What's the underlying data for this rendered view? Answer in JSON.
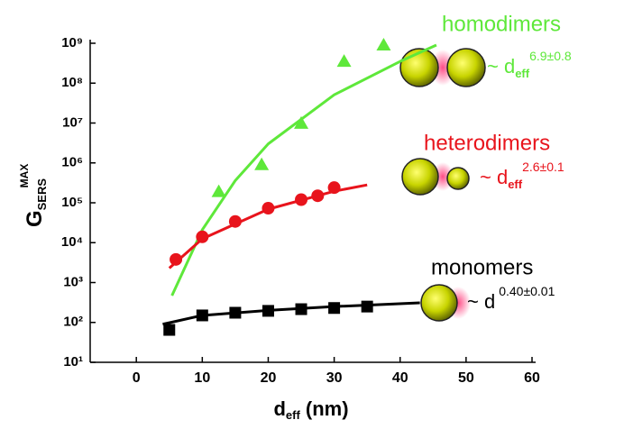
{
  "chart_data": {
    "type": "scatter",
    "x_label": {
      "main": "d",
      "sub": "eff",
      "rest": " (nm)"
    },
    "y_label": {
      "main": "G",
      "sub": "SERS",
      "sup": "MAX"
    },
    "xlim": [
      -7,
      60
    ],
    "xticks": [
      0,
      10,
      20,
      30,
      40,
      50,
      60
    ],
    "ylim": [
      10,
      1000000000
    ],
    "log_y": true,
    "yticks": [
      {
        "value": 10,
        "label": "10¹"
      },
      {
        "value": 100,
        "label": "10²"
      },
      {
        "value": 1000,
        "label": "10³"
      },
      {
        "value": 10000,
        "label": "10⁴"
      },
      {
        "value": 100000,
        "label": "10⁵"
      },
      {
        "value": 1000000,
        "label": "10⁶"
      },
      {
        "value": 10000000,
        "label": "10⁷"
      },
      {
        "value": 100000000,
        "label": "10⁸"
      },
      {
        "value": 1000000000,
        "label": "10⁹"
      }
    ],
    "series": [
      {
        "name": "homodimers",
        "color": "#5ee83a",
        "marker": "triangle",
        "formula": {
          "prefix": "~ d",
          "sub": "eff",
          "sup": "6.9±0.8"
        },
        "x": [
          12.5,
          19,
          25,
          31.5,
          37.5
        ],
        "values": [
          190000,
          900000,
          9800000,
          350000000,
          900000000
        ],
        "fit": {
          "x": [
            5.4,
            10,
            15,
            20,
            30,
            40,
            45.5
          ],
          "values": [
            470,
            21000,
            360000,
            3000000,
            51000000,
            350000000,
            900000000
          ]
        }
      },
      {
        "name": "heterodimers",
        "color": "#e8141c",
        "marker": "circle",
        "formula": {
          "prefix": "~ d",
          "sub": "eff",
          "sup": "2.6±0.1"
        },
        "x": [
          6,
          10,
          15,
          20,
          25,
          27.5,
          30
        ],
        "values": [
          3800,
          14000,
          34000,
          73000,
          120000,
          150000,
          240000
        ],
        "fit": {
          "x": [
            5,
            10,
            20,
            30,
            35
          ],
          "values": [
            2300,
            12500,
            69000,
            195000,
            280000
          ]
        }
      },
      {
        "name": "monomers",
        "color": "#000000",
        "marker": "square",
        "formula": {
          "prefix": "~ d",
          "sub": "",
          "sup": "0.40±0.01"
        },
        "x": [
          5,
          10,
          15,
          20,
          25,
          30,
          35
        ],
        "values": [
          65,
          150,
          175,
          195,
          215,
          230,
          250
        ],
        "fit": {
          "x": [
            4,
            10,
            20,
            30,
            43
          ],
          "values": [
            90,
            150,
            200,
            250,
            310
          ]
        }
      }
    ]
  }
}
